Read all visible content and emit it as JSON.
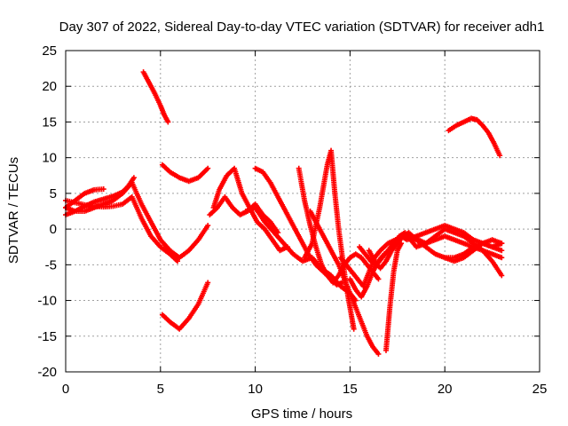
{
  "chart_data": {
    "type": "scatter",
    "title": "Day 307 of 2022, Sidereal Day-to-day VTEC variation (SDTVAR) for receiver adh1",
    "xlabel": "GPS time / hours",
    "ylabel": "SDTVAR / TECUs",
    "xlim": [
      0,
      25
    ],
    "ylim": [
      -20,
      25
    ],
    "xticks": [
      0,
      5,
      10,
      15,
      20,
      25
    ],
    "yticks": [
      -20,
      -15,
      -10,
      -5,
      0,
      5,
      10,
      15,
      20,
      25
    ],
    "grid": true,
    "marker": "+",
    "series": [
      {
        "color": "#ff0000",
        "x": [
          0.0,
          0.5,
          1.0,
          1.5,
          2.0,
          2.5,
          3.0,
          3.5,
          4.0,
          4.5,
          5.0,
          5.5,
          5.9
        ],
        "y": [
          4.0,
          3.7,
          3.4,
          3.2,
          3.1,
          3.2,
          3.5,
          4.5,
          1.5,
          -1.0,
          -2.5,
          -3.5,
          -4.5
        ]
      },
      {
        "color": "#ff0000",
        "x": [
          0.0,
          0.5,
          1.0,
          1.5,
          2.0,
          2.5,
          3.0,
          3.5,
          4.0,
          4.5,
          5.0,
          5.5,
          6.0,
          6.5,
          7.0,
          7.5
        ],
        "y": [
          3.0,
          2.5,
          2.5,
          3.0,
          3.5,
          4.0,
          5.0,
          6.5,
          3.5,
          1.0,
          -1.5,
          -3.0,
          -4.0,
          -3.0,
          -1.5,
          0.5
        ]
      },
      {
        "color": "#ff0000",
        "x": [
          0.0,
          0.5,
          1.0,
          1.5,
          2.0,
          2.5,
          3.0,
          3.3,
          3.6
        ],
        "y": [
          2.0,
          2.5,
          3.2,
          3.8,
          4.2,
          4.6,
          5.2,
          6.0,
          7.2
        ]
      },
      {
        "color": "#ff0000",
        "x": [
          0.0,
          0.5,
          1.0,
          1.5,
          2.0
        ],
        "y": [
          3.0,
          4.0,
          5.0,
          5.5,
          5.6
        ]
      },
      {
        "color": "#ff0000",
        "x": [
          4.1,
          4.4,
          4.7,
          5.0,
          5.2,
          5.4
        ],
        "y": [
          22.0,
          20.5,
          19.0,
          17.3,
          16.0,
          15.0
        ]
      },
      {
        "color": "#ff0000",
        "x": [
          5.1,
          5.5,
          6.0,
          6.5,
          7.0,
          7.5
        ],
        "y": [
          9.0,
          8.0,
          7.2,
          6.7,
          7.2,
          8.5
        ]
      },
      {
        "color": "#ff0000",
        "x": [
          5.1,
          5.5,
          6.0,
          6.5,
          7.0,
          7.5
        ],
        "y": [
          -12.0,
          -13.0,
          -14.0,
          -12.5,
          -10.5,
          -7.5
        ]
      },
      {
        "color": "#ff0000",
        "x": [
          7.8,
          8.1,
          8.5,
          8.9,
          9.3,
          9.7,
          10.1,
          10.5,
          10.9,
          11.3,
          11.7
        ],
        "y": [
          3.0,
          5.5,
          7.5,
          8.5,
          5.0,
          3.0,
          1.0,
          0.0,
          -1.5,
          -3.0,
          -2.5
        ]
      },
      {
        "color": "#ff0000",
        "x": [
          7.6,
          8.0,
          8.4,
          8.8,
          9.2,
          9.6,
          10.0,
          10.4,
          10.8,
          11.2
        ],
        "y": [
          2.0,
          3.0,
          4.5,
          3.0,
          2.0,
          2.5,
          3.5,
          2.0,
          1.0,
          -0.5
        ]
      },
      {
        "color": "#ff0000",
        "x": [
          10.0,
          10.4,
          10.8,
          11.2,
          11.6,
          12.0,
          12.4,
          12.8,
          13.2,
          13.6,
          14.0,
          14.3,
          14.6
        ],
        "y": [
          8.5,
          8.0,
          6.5,
          4.5,
          2.5,
          0.5,
          -1.5,
          -3.5,
          -5.0,
          -6.0,
          -7.0,
          -7.8,
          -7.5
        ]
      },
      {
        "color": "#ff0000",
        "x": [
          9.5,
          10.0,
          10.5,
          11.0,
          11.5,
          12.0,
          12.5,
          13.0,
          13.5,
          14.0,
          14.5,
          15.0,
          15.3
        ],
        "y": [
          2.5,
          3.0,
          1.0,
          -0.5,
          -2.0,
          -3.5,
          -4.5,
          -4.0,
          -5.5,
          -6.5,
          -8.0,
          -9.0,
          -10.0
        ]
      },
      {
        "color": "#ff0000",
        "x": [
          12.3,
          12.6,
          12.9,
          13.2,
          13.5,
          13.8,
          14.1,
          14.4,
          14.7,
          15.0,
          15.3,
          15.6,
          15.9,
          16.2,
          16.5
        ],
        "y": [
          8.5,
          4.0,
          0.5,
          -2.5,
          -5.0,
          -6.5,
          -7.5,
          -6.5,
          -5.0,
          -4.0,
          -3.5,
          -4.0,
          -5.0,
          -6.0,
          -7.0
        ]
      },
      {
        "color": "#ff0000",
        "x": [
          12.9,
          13.2,
          13.5,
          13.8,
          14.1,
          14.4,
          14.7,
          15.0,
          15.3,
          15.6,
          15.9,
          16.2,
          16.5
        ],
        "y": [
          2.5,
          1.0,
          -0.5,
          -2.0,
          -3.5,
          -5.0,
          -7.0,
          -9.0,
          -11.0,
          -13.0,
          -15.0,
          -16.5,
          -17.5
        ]
      },
      {
        "color": "#ff0000",
        "x": [
          12.6,
          13.0,
          13.4,
          13.8,
          14.0,
          14.2,
          14.4,
          14.6,
          14.8,
          15.0,
          15.2
        ],
        "y": [
          -4.0,
          -2.0,
          3.0,
          9.0,
          11.0,
          5.0,
          0.0,
          -4.0,
          -8.0,
          -11.0,
          -14.0
        ]
      },
      {
        "color": "#ff0000",
        "x": [
          14.5,
          14.8,
          15.1,
          15.4,
          15.7,
          16.0,
          16.3,
          16.6,
          17.0,
          17.4,
          17.8,
          18.2,
          18.6,
          19.0,
          19.5,
          20.0,
          20.5,
          21.0,
          21.5,
          22.0,
          22.5,
          23.0
        ],
        "y": [
          -4.0,
          -5.0,
          -6.0,
          -7.0,
          -8.0,
          -6.0,
          -4.0,
          -3.0,
          -2.0,
          -1.5,
          -1.0,
          -1.2,
          -1.5,
          -2.0,
          -1.5,
          -1.0,
          -1.5,
          -2.0,
          -2.5,
          -3.0,
          -3.5,
          -4.0
        ]
      },
      {
        "color": "#ff0000",
        "x": [
          15.0,
          15.3,
          15.6,
          15.9,
          16.2,
          16.5,
          16.8,
          17.1,
          17.4,
          17.7,
          18.0,
          18.5,
          19.0,
          19.5,
          20.0,
          20.5,
          21.0,
          21.5,
          22.0,
          22.5,
          23.0
        ],
        "y": [
          -7.0,
          -8.5,
          -9.5,
          -8.0,
          -6.0,
          -4.5,
          -3.5,
          -3.0,
          -2.0,
          -1.0,
          -1.5,
          -1.0,
          -0.5,
          0.0,
          0.5,
          0.0,
          -0.5,
          -1.5,
          -2.0,
          -2.5,
          -2.0
        ]
      },
      {
        "color": "#ff0000",
        "x": [
          15.5,
          15.8,
          16.1,
          16.4,
          16.7,
          17.0,
          17.3,
          17.6,
          17.9,
          18.2,
          18.5,
          19.0,
          19.5,
          20.0,
          20.5,
          21.0,
          21.5,
          22.0,
          22.5,
          23.0
        ],
        "y": [
          -2.5,
          -3.5,
          -4.5,
          -5.0,
          -4.0,
          -3.0,
          -2.0,
          -1.0,
          -0.5,
          -1.5,
          -2.5,
          -2.0,
          -1.0,
          0.0,
          -0.5,
          -1.0,
          -2.0,
          -3.0,
          -4.5,
          -6.5
        ]
      },
      {
        "color": "#ff0000",
        "x": [
          16.0,
          16.3,
          16.6,
          16.9,
          17.2,
          17.5,
          17.8,
          18.1,
          18.5,
          19.0,
          19.5,
          20.0,
          20.5,
          21.0,
          21.5,
          22.0,
          22.5,
          23.0
        ],
        "y": [
          -3.0,
          -4.5,
          -5.5,
          -4.5,
          -3.0,
          -2.0,
          -1.0,
          -0.5,
          -1.5,
          -2.5,
          -3.5,
          -4.0,
          -4.5,
          -4.0,
          -3.0,
          -2.0,
          -1.5,
          -2.0
        ]
      },
      {
        "color": "#ff0000",
        "x": [
          16.9,
          17.1,
          17.3,
          17.5,
          17.7
        ],
        "y": [
          -17.0,
          -11.0,
          -6.0,
          -3.0,
          -2.0
        ]
      },
      {
        "color": "#ff0000",
        "x": [
          20.2,
          20.6,
          21.0,
          21.4,
          21.7,
          22.0,
          22.3,
          22.6,
          22.9
        ],
        "y": [
          13.8,
          14.5,
          15.0,
          15.5,
          15.3,
          14.5,
          13.5,
          12.0,
          10.3
        ]
      },
      {
        "color": "#ff0000",
        "x": [
          20.0,
          20.5,
          21.0,
          21.5,
          22.0,
          22.5,
          23.0
        ],
        "y": [
          -4.0,
          -4.0,
          -3.5,
          -2.5,
          -2.0,
          -2.5,
          -3.0
        ]
      }
    ]
  }
}
